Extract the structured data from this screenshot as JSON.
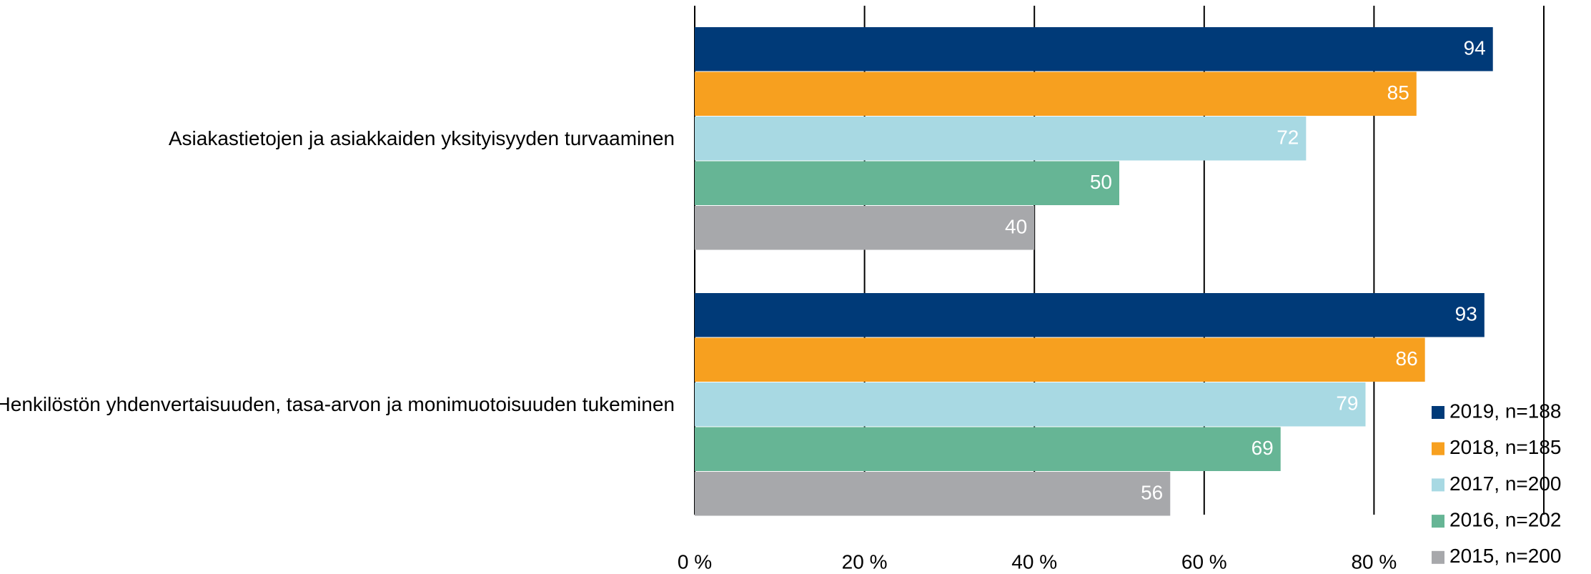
{
  "chart_data": {
    "type": "bar",
    "orientation": "horizontal",
    "categories": [
      "Asiakastietojen ja asiakkaiden yksityisyyden turvaaminen",
      "Henkilöstön yhdenvertaisuuden, tasa-arvon ja monimuotoisuuden tukeminen"
    ],
    "series": [
      {
        "name": "2019, n=188",
        "color": "#003a78",
        "values": [
          94,
          93
        ]
      },
      {
        "name": "2018, n=185",
        "color": "#f7a01f",
        "values": [
          85,
          86
        ]
      },
      {
        "name": "2017, n=200",
        "color": "#a8d9e3",
        "values": [
          72,
          79
        ]
      },
      {
        "name": "2016, n=202",
        "color": "#66b595",
        "values": [
          50,
          69
        ]
      },
      {
        "name": "2015, n=200",
        "color": "#a7a8ab",
        "values": [
          40,
          56
        ]
      }
    ],
    "xlim": [
      0,
      100
    ],
    "xticks": [
      {
        "value": 0,
        "label": "0 %"
      },
      {
        "value": 20,
        "label": "20 %"
      },
      {
        "value": 40,
        "label": "40 %"
      },
      {
        "value": 60,
        "label": "60 %"
      },
      {
        "value": 80,
        "label": "80 %"
      }
    ],
    "grid": true,
    "legend": "lower right"
  }
}
